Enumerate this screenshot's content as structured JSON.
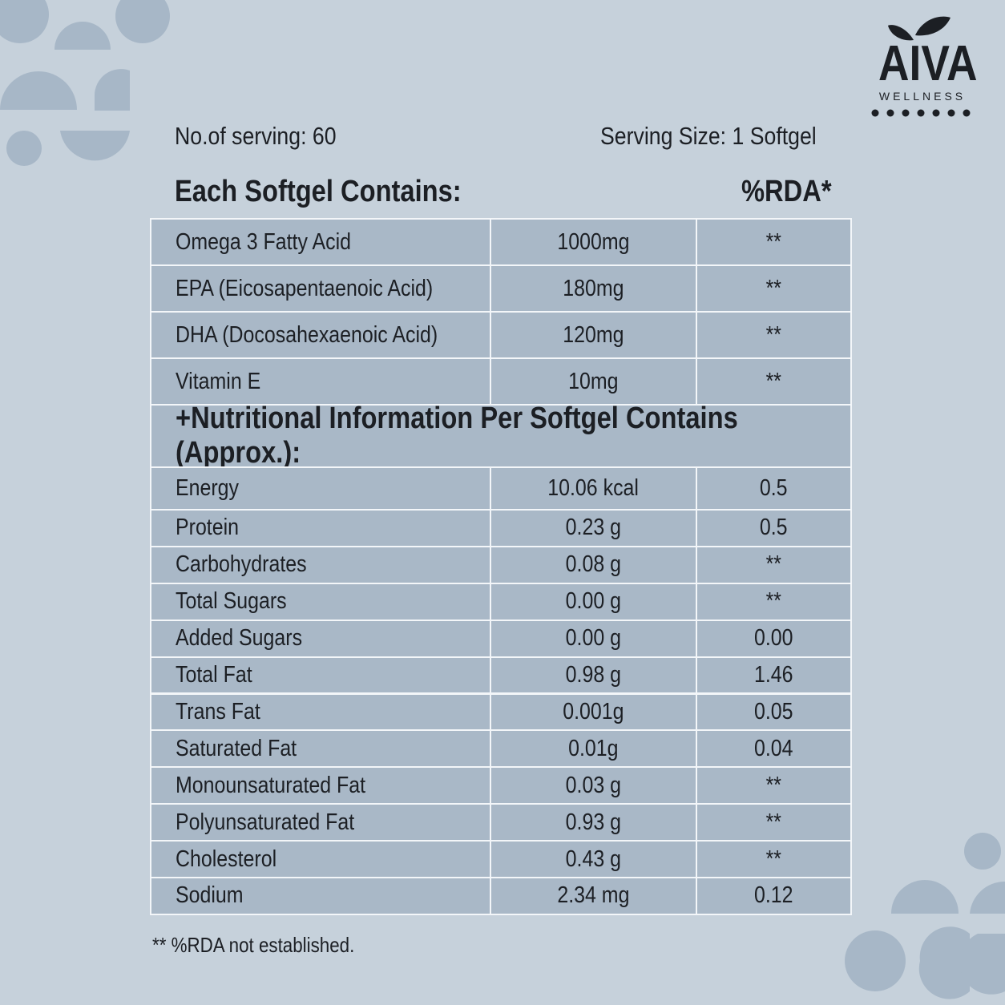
{
  "logo": {
    "brand": "AIVA",
    "tagline": "WELLNESS"
  },
  "serving": {
    "count": "No.of serving: 60",
    "size": "Serving Size: 1 Softgel"
  },
  "section1": {
    "heading": "Each Softgel Contains:",
    "rda_heading": "%RDA*",
    "rows": [
      [
        "Omega 3 Fatty Acid",
        "1000mg",
        "**"
      ],
      [
        "EPA (Eicosapentaenoic Acid)",
        "180mg",
        "**"
      ],
      [
        "DHA (Docosahexaenoic Acid)",
        "120mg",
        "**"
      ],
      [
        "Vitamin E",
        "10mg",
        "**"
      ]
    ]
  },
  "section2": {
    "heading": "+Nutritional Information Per Softgel Contains (Approx.):",
    "rows": [
      [
        "Energy",
        "10.06 kcal",
        "0.5"
      ],
      [
        "Protein",
        "0.23 g",
        "0.5"
      ],
      [
        "Carbohydrates",
        "0.08 g",
        "**"
      ],
      [
        "Total Sugars",
        "0.00 g",
        "**"
      ],
      [
        "Added Sugars",
        "0.00 g",
        "0.00"
      ],
      [
        "Total Fat",
        "0.98 g",
        "1.46"
      ],
      [
        "Trans Fat",
        "0.001g",
        "0.05"
      ],
      [
        "Saturated Fat",
        "0.01g",
        "0.04"
      ],
      [
        "Monounsaturated Fat",
        "0.03 g",
        "**"
      ],
      [
        "Polyunsaturated Fat",
        "0.93 g",
        "**"
      ],
      [
        "Cholesterol",
        "0.43 g",
        "**"
      ],
      [
        "Sodium",
        "2.34 mg",
        "0.12"
      ]
    ]
  },
  "footnote": "** %RDA not established."
}
